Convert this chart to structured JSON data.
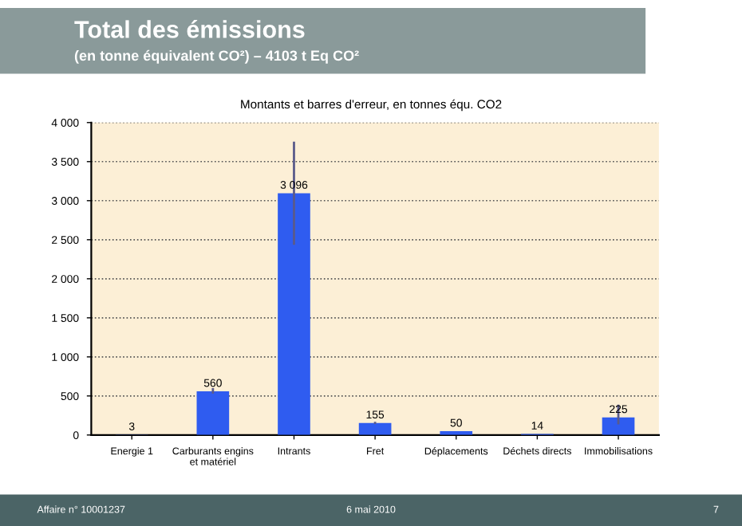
{
  "chart_data": {
    "type": "bar",
    "title": "Total des émissions",
    "subtitle": "(en tonne équivalent CO²) – 4103 t Eq CO²",
    "annotations": [
      "Montants et barres d'erreur, en tonnes équ. CO2",
      "Affaire n° 10001237",
      "6 mai 2010",
      "7"
    ],
    "categories": [
      "Energie 1",
      "Carburants engins\net matériel",
      "Intrants",
      "Fret",
      "Déplacements",
      "Déchets directs",
      "Immobilisations"
    ],
    "values": [
      3,
      560,
      3096,
      155,
      50,
      14,
      225
    ],
    "errors": [
      null,
      [
        530,
        600
      ],
      [
        2435,
        3755
      ],
      [
        140,
        170
      ],
      null,
      null,
      [
        136,
        388
      ]
    ],
    "value_labels": [
      "3",
      "560",
      "3 096",
      "155",
      "50",
      "14",
      "225"
    ],
    "color": "#2f5cf0",
    "ylim": [
      0,
      4000
    ],
    "yticks": [
      0,
      {
        "value": 500,
        "label": "500"
      },
      {
        "value": 1000,
        "label": "1 000"
      },
      {
        "value": 1500,
        "label": "1 500"
      },
      {
        "value": 2000,
        "label": "2 000"
      },
      {
        "value": 2500,
        "label": "2 500"
      },
      {
        "value": 3000,
        "label": "3 000"
      },
      {
        "value": 3500,
        "label": "3 500"
      },
      {
        "value": 4000,
        "label": "4 000"
      }
    ],
    "grid": "y"
  }
}
